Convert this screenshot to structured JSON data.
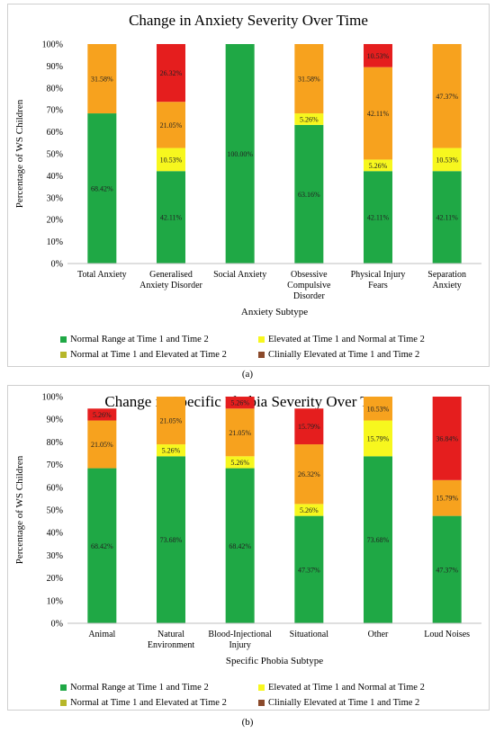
{
  "chart_data": [
    {
      "type": "bar",
      "stacked": true,
      "percent_stacked": true,
      "title": "Change in Anxiety Severity Over Time",
      "xlabel": "Anxiety Subtype",
      "ylabel": "Percentage of WS Children",
      "caption": "(a)",
      "ylim": [
        0,
        100
      ],
      "yticks": [
        "0%",
        "10%",
        "20%",
        "30%",
        "40%",
        "50%",
        "60%",
        "70%",
        "80%",
        "90%",
        "100%"
      ],
      "grid": false,
      "legend_position": "bottom",
      "categories": [
        "Total Anxiety",
        "Generalised Anxiety Disorder",
        "Social Anxiety",
        "Obsessive Compulsive Disorder",
        "Physical Injury Fears",
        "Separation Anxiety"
      ],
      "series": [
        {
          "name": "Normal Range at Time 1 and Time 2",
          "color": "#1fa845",
          "values": [
            68.42,
            42.11,
            100.0,
            63.16,
            42.11,
            42.11
          ],
          "labels": [
            "68.42%",
            "42.11%",
            "100.00%",
            "63.16%",
            "42.11%",
            "42.11%"
          ]
        },
        {
          "name": "Elevated at Time 1 and Normal at Time 2",
          "color": "#f7f71e",
          "values": [
            0,
            10.53,
            0,
            5.26,
            5.26,
            10.53
          ],
          "labels": [
            "",
            "10.53%",
            "",
            "5.26%",
            "5.26%",
            "10.53%"
          ]
        },
        {
          "name": "Normal at Time 1 and Elevated at Time 2",
          "color": "#f7a21e",
          "values": [
            31.58,
            21.05,
            0,
            31.58,
            42.11,
            47.37
          ],
          "labels": [
            "31.58%",
            "21.05%",
            "",
            "31.58%",
            "42.11%",
            "47.37%"
          ]
        },
        {
          "name": "Clinially Elevated at Time 1 and Time 2",
          "color": "#e51e1e",
          "values": [
            0,
            26.32,
            0,
            0,
            10.53,
            0
          ],
          "labels": [
            "",
            "26.32%",
            "",
            "",
            "10.53%",
            ""
          ]
        }
      ],
      "legend": [
        {
          "label": "Normal Range at Time 1 and Time 2",
          "color": "#1fa845"
        },
        {
          "label": "Elevated at Time 1 and Normal at Time 2",
          "color": "#f7f71e"
        },
        {
          "label": "Normal at Time 1 and Elevated at Time 2",
          "color": "#b7b72a"
        },
        {
          "label": "Clinially Elevated at Time 1 and Time 2",
          "color": "#8b4a2b"
        }
      ]
    },
    {
      "type": "bar",
      "stacked": true,
      "percent_stacked": true,
      "title": "Change in Specific Phobia Severity Over Time",
      "xlabel": "Specific Phobia Subtype",
      "ylabel": "Percentage of WS Children",
      "caption": "(b)",
      "ylim": [
        0,
        100
      ],
      "yticks": [
        "0%",
        "10%",
        "20%",
        "30%",
        "40%",
        "50%",
        "60%",
        "70%",
        "80%",
        "90%",
        "100%"
      ],
      "grid": false,
      "legend_position": "bottom",
      "categories": [
        "Animal",
        "Natural Environment",
        "Blood-Injectional Injury",
        "Situational",
        "Other",
        "Loud Noises"
      ],
      "series": [
        {
          "name": "Normal Range at Time 1 and Time 2",
          "color": "#1fa845",
          "values": [
            68.42,
            73.68,
            68.42,
            47.37,
            73.68,
            47.37
          ],
          "labels": [
            "68.42%",
            "73.68%",
            "68.42%",
            "47.37%",
            "73.68%",
            "47.37%"
          ]
        },
        {
          "name": "Elevated at Time 1 and Normal at Time 2",
          "color": "#f7f71e",
          "values": [
            0,
            5.26,
            5.26,
            5.26,
            15.79,
            0
          ],
          "labels": [
            "",
            "5.26%",
            "5.26%",
            "5.26%",
            "15.79%",
            ""
          ]
        },
        {
          "name": "Normal at Time 1 and Elevated at Time 2",
          "color": "#f7a21e",
          "values": [
            21.05,
            21.05,
            21.05,
            26.32,
            10.53,
            15.79
          ],
          "labels": [
            "21.05%",
            "21.05%",
            "21.05%",
            "26.32%",
            "10.53%",
            "15.79%"
          ]
        },
        {
          "name": "Clinially Elevated at Time 1 and Time 2",
          "color": "#e51e1e",
          "values": [
            5.26,
            0,
            5.26,
            15.79,
            0,
            36.84
          ],
          "labels": [
            "5.26%",
            "",
            "5.26%",
            "15.79%",
            "",
            "36.84%"
          ]
        }
      ],
      "legend": [
        {
          "label": "Normal Range at Time 1 and Time 2",
          "color": "#1fa845"
        },
        {
          "label": "Elevated at Time 1 and Normal at Time 2",
          "color": "#f7f71e"
        },
        {
          "label": "Normal at Time 1 and Elevated at Time 2",
          "color": "#b7b72a"
        },
        {
          "label": "Clinially Elevated at Time 1 and Time 2",
          "color": "#8b4a2b"
        }
      ]
    }
  ]
}
